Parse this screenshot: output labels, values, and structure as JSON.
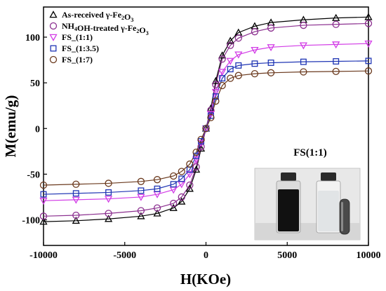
{
  "chart_data": {
    "type": "scatter",
    "title": "",
    "xlabel": "H(KOe)",
    "ylabel": "M(emu/g)",
    "xlim": [
      -10000,
      10000
    ],
    "ylim": [
      -128,
      133
    ],
    "x_ticks": [
      -10000,
      -5000,
      0,
      5000,
      10000
    ],
    "x_tick_labels": [
      "-10000",
      "-5000",
      "0",
      "5000",
      "10000"
    ],
    "y_ticks": [
      -100,
      -50,
      0,
      50,
      100
    ],
    "y_tick_labels": [
      "-100",
      "-50",
      "0",
      "50",
      "100"
    ],
    "grid": false,
    "legend_position": "top-left",
    "series": [
      {
        "label_text": "As-received γ-Fe",
        "label_sub1": "2",
        "label_mid": "O",
        "label_sub2": "3",
        "label_after": "",
        "marker": "triangle-up",
        "color": "#000000",
        "x": [
          -10000,
          -8000,
          -6000,
          -4000,
          -3000,
          -2000,
          -1500,
          -1000,
          -600,
          -300,
          0,
          300,
          600,
          1000,
          1500,
          2000,
          3000,
          4000,
          6000,
          8000,
          10000
        ],
        "y": [
          -102,
          -101,
          -99,
          -96,
          -93,
          -87,
          -80,
          -66,
          -45,
          -22,
          0,
          22,
          52,
          80,
          96,
          105,
          112,
          116,
          119,
          121,
          122
        ]
      },
      {
        "label_text": "NH",
        "label_sub1": "4",
        "label_mid": "OH-treated γ-Fe",
        "label_sub2": "2",
        "label_after": "O",
        "label_sub3": "3",
        "marker": "circle",
        "color": "#8b2f8f",
        "x": [
          -10000,
          -8000,
          -6000,
          -4000,
          -3000,
          -2000,
          -1500,
          -1000,
          -600,
          -300,
          0,
          300,
          600,
          1000,
          1500,
          2000,
          3000,
          4000,
          6000,
          8000,
          10000
        ],
        "y": [
          -96,
          -95,
          -93,
          -90,
          -87,
          -82,
          -75,
          -62,
          -42,
          -20,
          0,
          20,
          48,
          76,
          91,
          99,
          106,
          110,
          113,
          114,
          115
        ]
      },
      {
        "label_text": "FS_(1:1)",
        "marker": "triangle-down",
        "color": "#d23ce6",
        "x": [
          -10000,
          -8000,
          -6000,
          -4000,
          -3000,
          -2000,
          -1500,
          -1000,
          -600,
          -300,
          0,
          300,
          600,
          1000,
          1500,
          2000,
          3000,
          4000,
          6000,
          8000,
          10000
        ],
        "y": [
          -79,
          -78,
          -77,
          -75,
          -72,
          -67,
          -61,
          -50,
          -34,
          -16,
          0,
          16,
          40,
          62,
          74,
          81,
          86,
          89,
          91,
          92,
          93
        ]
      },
      {
        "label_text": "FS_(1:3.5)",
        "marker": "square",
        "color": "#1f35b4",
        "x": [
          -10000,
          -8000,
          -6000,
          -4000,
          -3000,
          -2000,
          -1500,
          -1000,
          -600,
          -300,
          0,
          300,
          600,
          1000,
          1500,
          2000,
          3000,
          4000,
          6000,
          8000,
          10000
        ],
        "y": [
          -72,
          -71,
          -70,
          -68,
          -66,
          -61,
          -55,
          -45,
          -30,
          -14,
          0,
          14,
          35,
          55,
          65,
          69,
          71,
          72,
          73,
          73.5,
          74
        ]
      },
      {
        "label_text": "FS_(1:7)",
        "marker": "circle",
        "color": "#6b3a1e",
        "x": [
          -10000,
          -8000,
          -6000,
          -4000,
          -3000,
          -2000,
          -1500,
          -1000,
          -600,
          -300,
          0,
          300,
          600,
          1000,
          1500,
          2000,
          3000,
          4000,
          6000,
          8000,
          10000
        ],
        "y": [
          -62,
          -61,
          -60,
          -58,
          -56,
          -52,
          -47,
          -39,
          -26,
          -12,
          0,
          12,
          30,
          47,
          55,
          58,
          60,
          61,
          62,
          62.5,
          63
        ]
      }
    ],
    "inset": {
      "title": "FS(1:1)"
    }
  }
}
